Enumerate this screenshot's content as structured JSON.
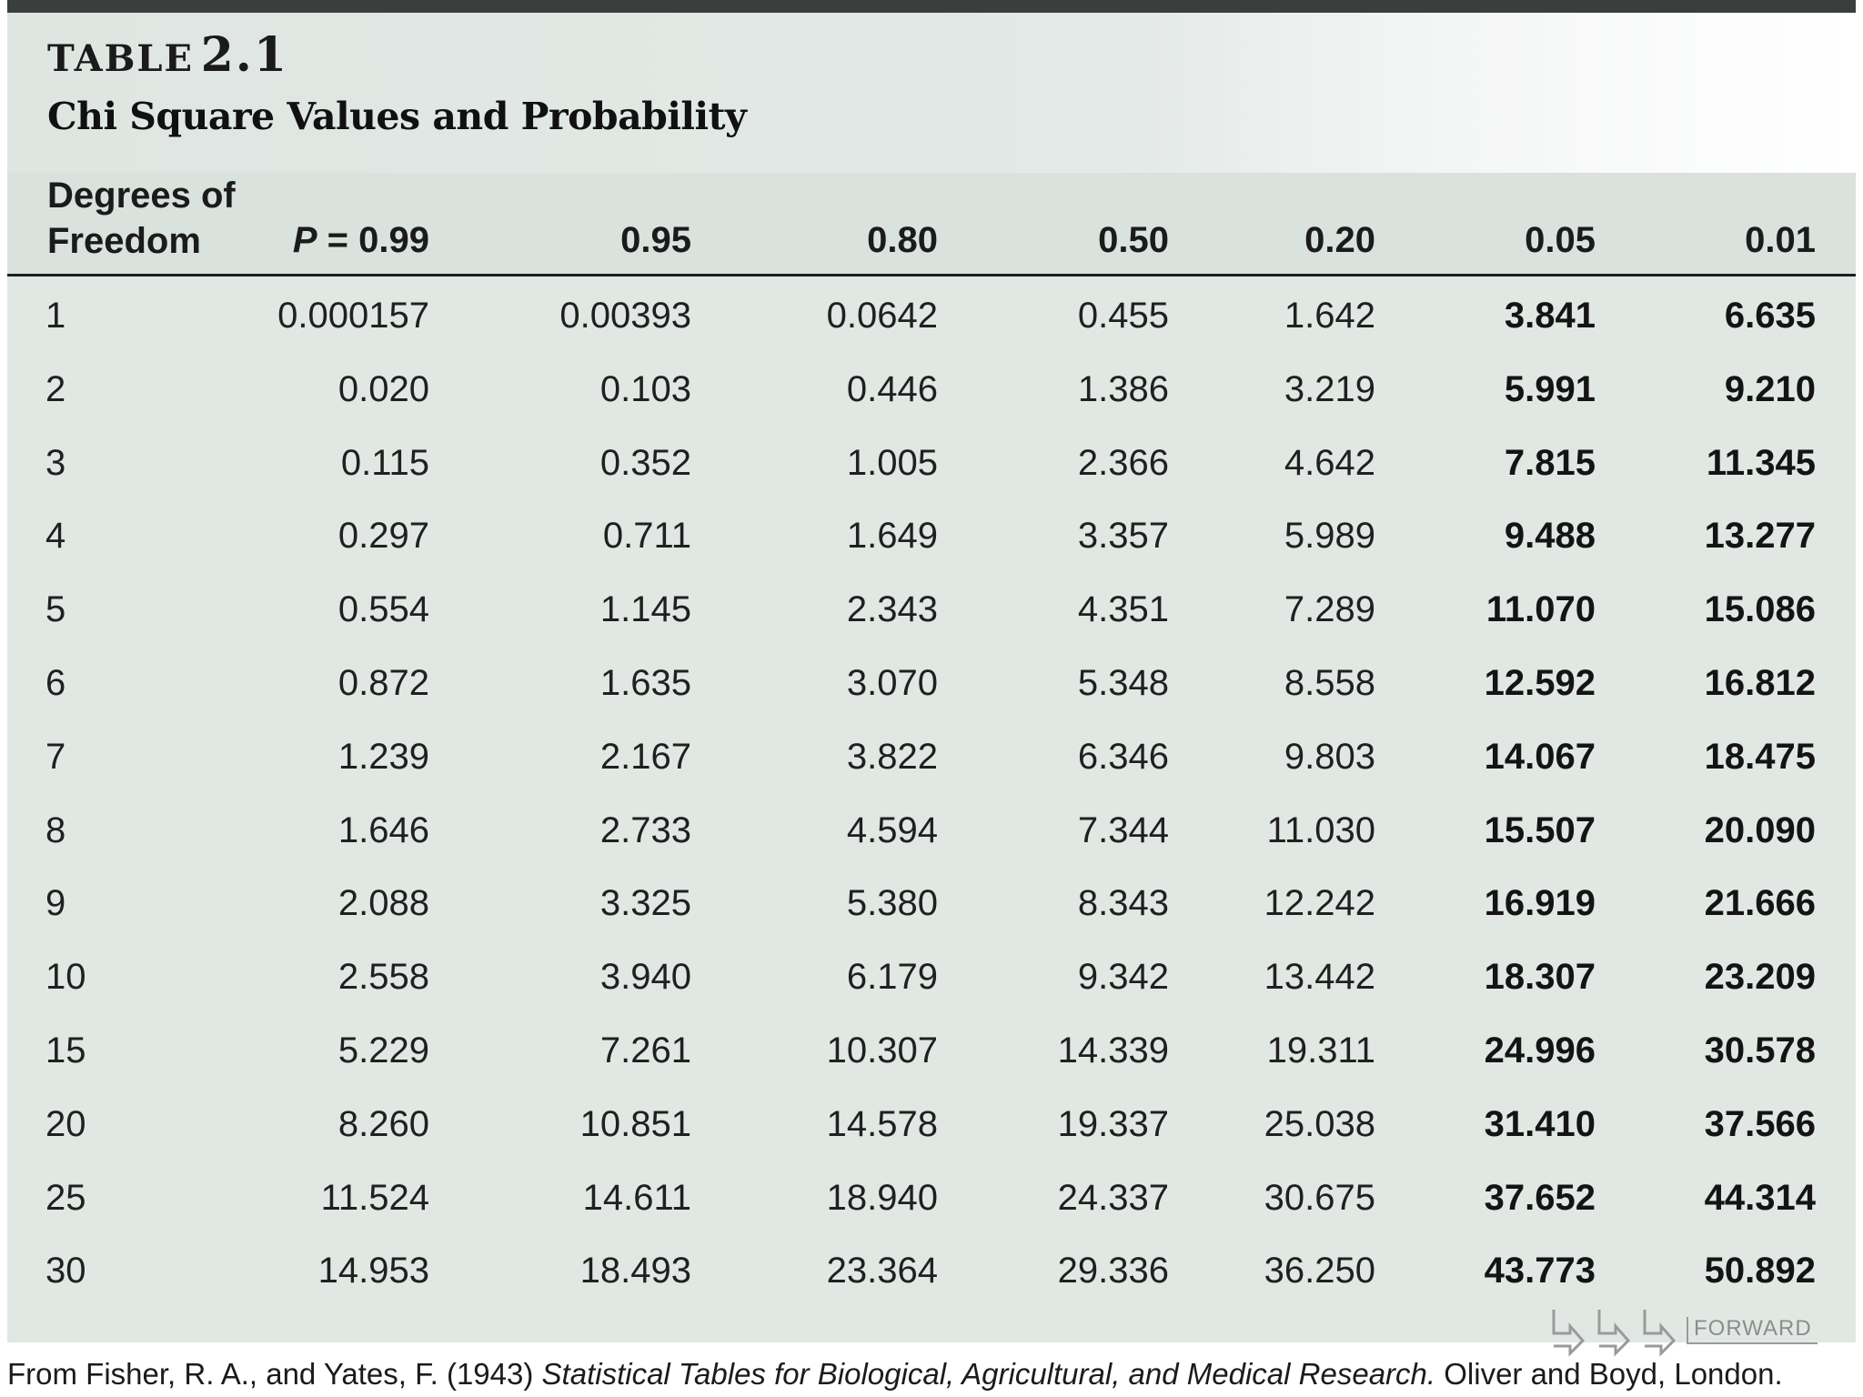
{
  "header": {
    "table_word": "TABLE",
    "table_number": "2.1",
    "title": "Chi Square Values and Probability"
  },
  "columns": {
    "df_line1": "Degrees of",
    "df_line2": "Freedom",
    "p_prefix": "P",
    "p_eq": " = ",
    "probabilities": [
      "0.99",
      "0.95",
      "0.80",
      "0.50",
      "0.20",
      "0.05",
      "0.01"
    ]
  },
  "rows": [
    {
      "df": "1",
      "values": [
        "0.000157",
        "0.00393",
        "0.0642",
        "0.455",
        "1.642",
        "3.841",
        "6.635"
      ]
    },
    {
      "df": "2",
      "values": [
        "0.020",
        "0.103",
        "0.446",
        "1.386",
        "3.219",
        "5.991",
        "9.210"
      ]
    },
    {
      "df": "3",
      "values": [
        "0.115",
        "0.352",
        "1.005",
        "2.366",
        "4.642",
        "7.815",
        "11.345"
      ]
    },
    {
      "df": "4",
      "values": [
        "0.297",
        "0.711",
        "1.649",
        "3.357",
        "5.989",
        "9.488",
        "13.277"
      ]
    },
    {
      "df": "5",
      "values": [
        "0.554",
        "1.145",
        "2.343",
        "4.351",
        "7.289",
        "11.070",
        "15.086"
      ]
    },
    {
      "df": "6",
      "values": [
        "0.872",
        "1.635",
        "3.070",
        "5.348",
        "8.558",
        "12.592",
        "16.812"
      ]
    },
    {
      "df": "7",
      "values": [
        "1.239",
        "2.167",
        "3.822",
        "6.346",
        "9.803",
        "14.067",
        "18.475"
      ]
    },
    {
      "df": "8",
      "values": [
        "1.646",
        "2.733",
        "4.594",
        "7.344",
        "11.030",
        "15.507",
        "20.090"
      ]
    },
    {
      "df": "9",
      "values": [
        "2.088",
        "3.325",
        "5.380",
        "8.343",
        "12.242",
        "16.919",
        "21.666"
      ]
    },
    {
      "df": "10",
      "values": [
        "2.558",
        "3.940",
        "6.179",
        "9.342",
        "13.442",
        "18.307",
        "23.209"
      ]
    },
    {
      "df": "15",
      "values": [
        "5.229",
        "7.261",
        "10.307",
        "14.339",
        "19.311",
        "24.996",
        "30.578"
      ]
    },
    {
      "df": "20",
      "values": [
        "8.260",
        "10.851",
        "14.578",
        "19.337",
        "25.038",
        "31.410",
        "37.566"
      ]
    },
    {
      "df": "25",
      "values": [
        "11.524",
        "14.611",
        "18.940",
        "24.337",
        "30.675",
        "37.652",
        "44.314"
      ]
    },
    {
      "df": "30",
      "values": [
        "14.953",
        "18.493",
        "23.364",
        "29.336",
        "36.250",
        "43.773",
        "50.892"
      ]
    }
  ],
  "bold_columns": [
    5,
    6
  ],
  "footer": {
    "prefix": "From Fisher, R. A., and Yates, F. (1943) ",
    "book": "Statistical Tables for Biological, Agricultural, and Medical Research.",
    "suffix": " Oliver and Boyd, London."
  },
  "nav": {
    "forward_label": "FORWARD"
  }
}
